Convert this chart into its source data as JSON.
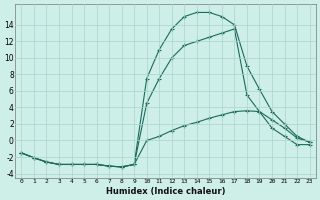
{
  "xlabel": "Humidex (Indice chaleur)",
  "background_color": "#ceeee8",
  "grid_color": "#aad4cc",
  "line_color": "#1a6b5a",
  "x_values": [
    0,
    1,
    2,
    3,
    4,
    5,
    6,
    7,
    8,
    9,
    10,
    11,
    12,
    13,
    14,
    15,
    16,
    17,
    18,
    19,
    20,
    21,
    22,
    23
  ],
  "line_top": [
    -1.5,
    -2.1,
    -2.6,
    -2.9,
    -2.9,
    -2.9,
    -2.9,
    -3.1,
    -3.2,
    -2.9,
    7.5,
    11.0,
    13.5,
    15.0,
    15.5,
    15.5,
    15.0,
    14.0,
    9.0,
    6.2,
    3.5,
    2.0,
    0.5,
    -0.2
  ],
  "line_mid": [
    -1.5,
    -2.1,
    -2.6,
    -2.9,
    -2.9,
    -2.9,
    -2.9,
    -3.1,
    -3.2,
    -2.9,
    4.5,
    7.5,
    10.0,
    11.5,
    12.0,
    12.5,
    13.0,
    13.5,
    5.5,
    3.5,
    1.5,
    0.5,
    -0.5,
    -0.5
  ],
  "line_bot": [
    -1.5,
    -2.1,
    -2.6,
    -2.9,
    -2.9,
    -2.9,
    -2.9,
    -3.1,
    -3.2,
    -2.9,
    0.0,
    0.5,
    1.2,
    1.8,
    2.2,
    2.7,
    3.1,
    3.5,
    3.6,
    3.5,
    2.5,
    1.5,
    0.3,
    -0.2
  ],
  "ylim": [
    -4.5,
    16.5
  ],
  "xlim": [
    -0.5,
    23.5
  ],
  "yticks": [
    -4,
    -2,
    0,
    2,
    4,
    6,
    8,
    10,
    12,
    14
  ],
  "xticks": [
    0,
    1,
    2,
    3,
    4,
    5,
    6,
    7,
    8,
    9,
    10,
    11,
    12,
    13,
    14,
    15,
    16,
    17,
    18,
    19,
    20,
    21,
    22,
    23
  ]
}
